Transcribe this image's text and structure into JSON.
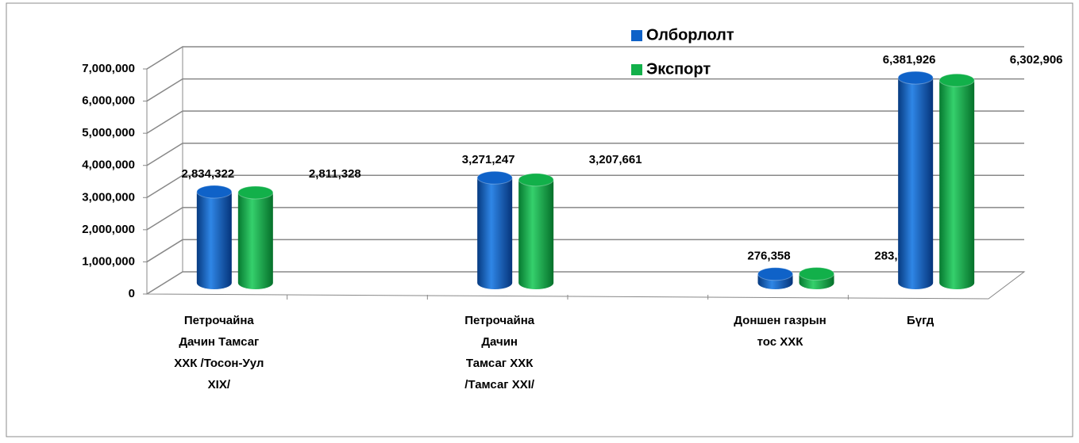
{
  "chart_data": {
    "type": "bar3d",
    "categories": [
      "Петрочайна\nДачин Тамсаг\nХХК /Тосон-Уул\nXIX/",
      null,
      "Петрочайна\nДачин\nТамсаг ХХК\n/Тамсаг XXI/",
      null,
      "Доншен газрын\nтос  ХХК",
      "Бүгд"
    ],
    "series": [
      {
        "name": "Олборлолт",
        "color": "#0f62c8",
        "values": [
          2834322,
          null,
          3271247,
          null,
          276358,
          6381926
        ],
        "value_labels": [
          "2,834,322",
          null,
          "3,271,247",
          null,
          "276,358",
          "6,381,926"
        ]
      },
      {
        "name": "Экспорт",
        "color": "#12b04a",
        "values": [
          2811328,
          null,
          3207661,
          null,
          283917,
          6302906
        ],
        "value_labels": [
          "2,811,328",
          null,
          "3,207,661",
          null,
          "283,917",
          "6,302,906"
        ]
      }
    ],
    "ylim": [
      0,
      7000000
    ],
    "yticks": [
      0,
      {
        "value": 1000000,
        "label": "1,000,000"
      },
      {
        "value": 2000000,
        "label": "2,000,000"
      },
      {
        "value": 3000000,
        "label": "3,000,000"
      },
      {
        "value": 4000000,
        "label": "4,000,000"
      },
      {
        "value": 5000000,
        "label": "5,000,000"
      },
      {
        "value": 6000000,
        "label": "6,000,000"
      },
      {
        "value": 7000000,
        "label": "7,000,000"
      }
    ],
    "grid": true
  }
}
